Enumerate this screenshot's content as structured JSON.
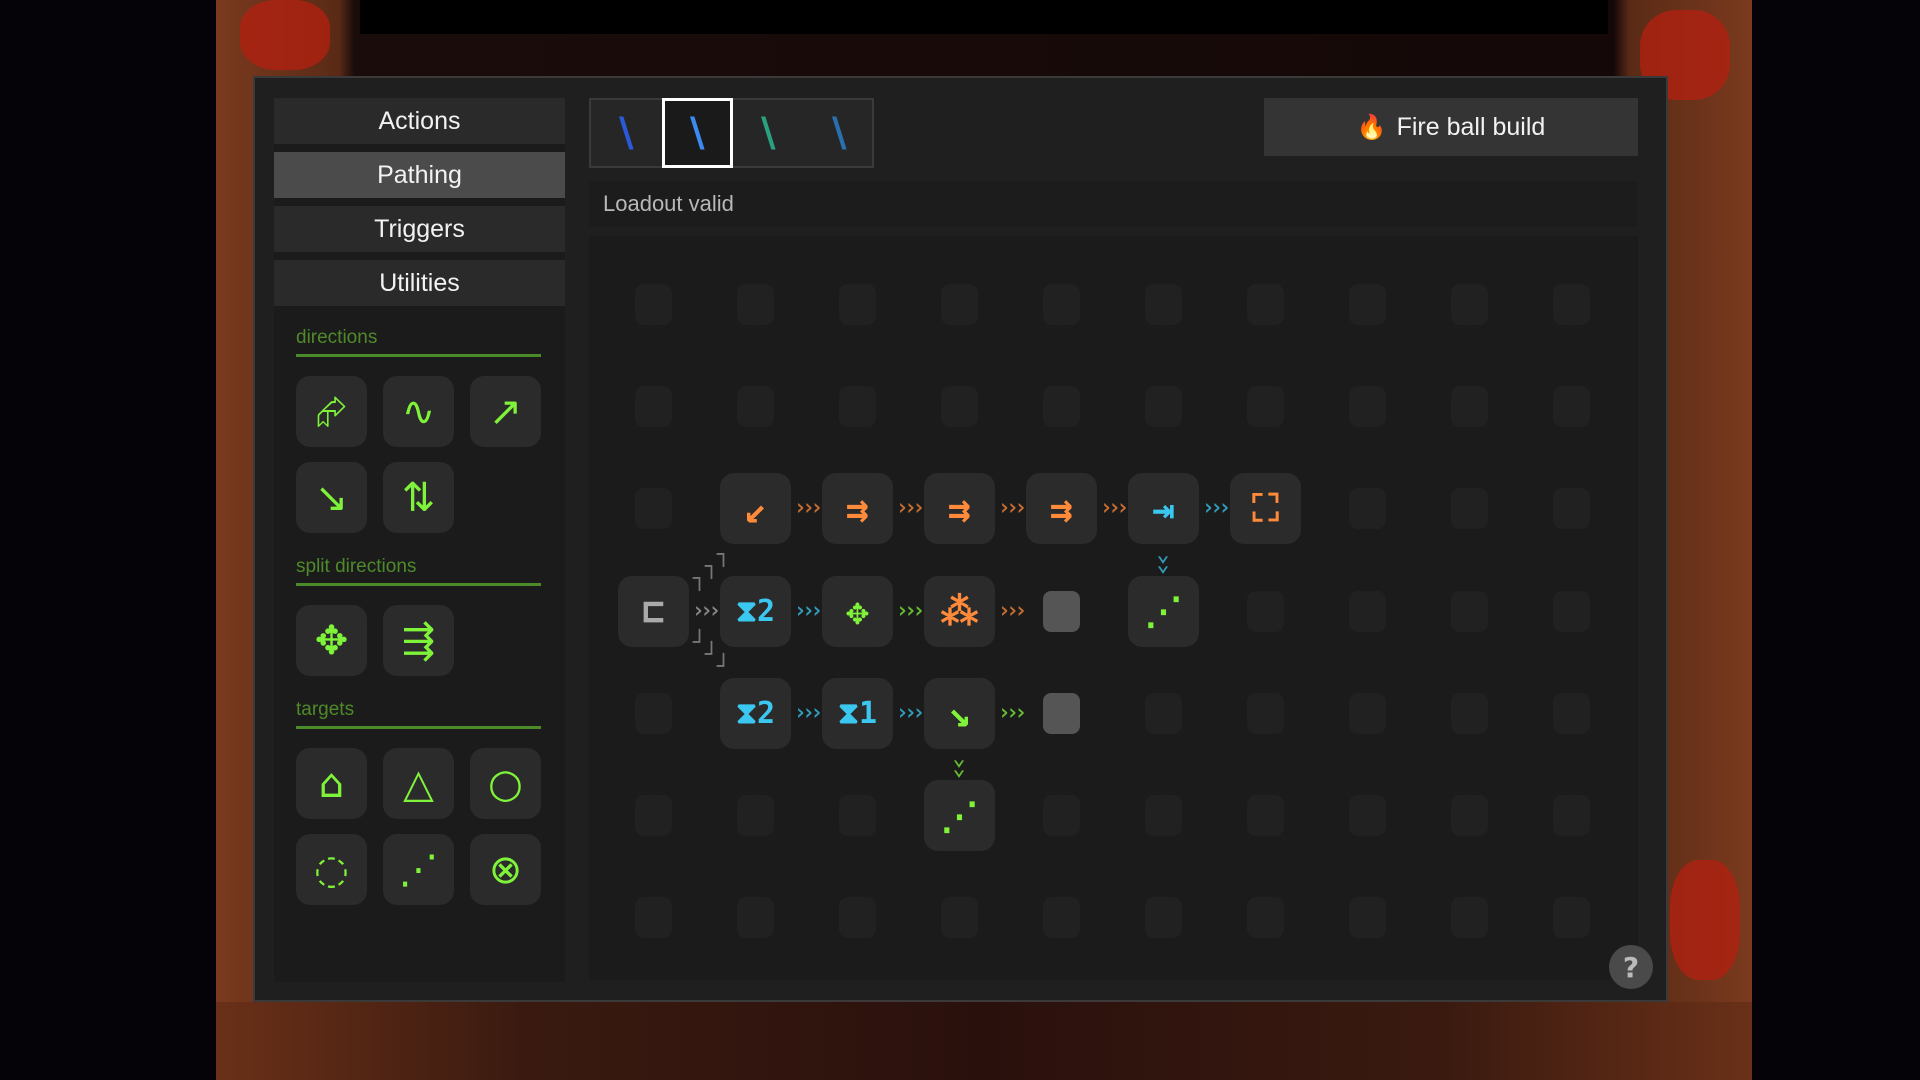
{
  "categories": [
    {
      "label": "Actions",
      "selected": false
    },
    {
      "label": "Pathing",
      "selected": true
    },
    {
      "label": "Triggers",
      "selected": false
    },
    {
      "label": "Utilities",
      "selected": false
    }
  ],
  "palette": [
    {
      "label": "directions",
      "items": [
        {
          "icon": "redirect-box-arrow-icon",
          "glyph": "⮳"
        },
        {
          "icon": "wave-arrow-icon",
          "glyph": "∿"
        },
        {
          "icon": "arrow-up-right-zero-icon",
          "glyph": "↗"
        },
        {
          "icon": "zigzag-arrow-icon",
          "glyph": "↘"
        },
        {
          "icon": "bounce-arrow-icon",
          "glyph": "⇅"
        }
      ]
    },
    {
      "label": "split directions",
      "items": [
        {
          "icon": "eight-way-split-icon",
          "glyph": "✥"
        },
        {
          "icon": "fork-split-icon",
          "glyph": "⇶"
        }
      ]
    },
    {
      "label": "targets",
      "items": [
        {
          "icon": "lock-target-icon",
          "glyph": "⌂"
        },
        {
          "icon": "triangle-target-icon",
          "glyph": "△"
        },
        {
          "icon": "ring-target-icon",
          "glyph": "○"
        },
        {
          "icon": "dotted-ring-target-icon",
          "glyph": "◌"
        },
        {
          "icon": "dotted-triangle-target-icon",
          "glyph": "⋰"
        },
        {
          "icon": "orbit-target-icon",
          "glyph": "⊗"
        }
      ]
    }
  ],
  "wands": [
    {
      "icon": "wand-blue-pink-icon",
      "color": "#2a5ad8",
      "selected": false
    },
    {
      "icon": "wand-light-blue-pink-icon",
      "color": "#3a8af0",
      "selected": true
    },
    {
      "icon": "wand-teal-icon",
      "color": "#2aa080",
      "selected": false
    },
    {
      "icon": "wand-hook-blue-icon",
      "color": "#2a70b0",
      "selected": false
    }
  ],
  "build": {
    "label": "Fire ball build",
    "icon": "fire-icon"
  },
  "status": "Loadout valid",
  "colors": {
    "orange": "#ff8a3a",
    "cyan": "#3ac8f0",
    "green": "#7ff23a",
    "gray": "#aaaaaa"
  },
  "graph": {
    "columns": 10,
    "rows": 7,
    "nodes": [
      {
        "row": 2,
        "col": 1,
        "icon": "target-incoming-icon",
        "glyph": "↙",
        "color": "orange"
      },
      {
        "row": 2,
        "col": 2,
        "icon": "double-arrow-icon",
        "glyph": "⇉",
        "color": "orange"
      },
      {
        "row": 2,
        "col": 3,
        "icon": "double-arrow-icon",
        "glyph": "⇉",
        "color": "orange"
      },
      {
        "row": 2,
        "col": 4,
        "icon": "double-arrow-icon",
        "glyph": "⇉",
        "color": "orange"
      },
      {
        "row": 2,
        "col": 5,
        "icon": "arrow-to-wall-icon",
        "glyph": "⇥",
        "color": "cyan"
      },
      {
        "row": 2,
        "col": 6,
        "icon": "expand-corners-icon",
        "glyph": "⛶",
        "color": "orange"
      },
      {
        "row": 3,
        "col": 0,
        "icon": "splitter-icon",
        "glyph": "⊏",
        "color": "gray"
      },
      {
        "row": 3,
        "col": 1,
        "icon": "timer-2-icon",
        "glyph": "⧗2",
        "color": "cyan"
      },
      {
        "row": 3,
        "col": 2,
        "icon": "eight-way-split-icon",
        "glyph": "✥",
        "color": "green"
      },
      {
        "row": 3,
        "col": 3,
        "icon": "circles-cluster-icon",
        "glyph": "⁂",
        "color": "orange"
      },
      {
        "row": 3,
        "col": 5,
        "icon": "dotted-triangle-target-icon",
        "glyph": "⋰",
        "color": "green"
      },
      {
        "row": 4,
        "col": 1,
        "icon": "timer-2-icon",
        "glyph": "⧗2",
        "color": "cyan"
      },
      {
        "row": 4,
        "col": 2,
        "icon": "timer-1-icon",
        "glyph": "⧗1",
        "color": "cyan"
      },
      {
        "row": 4,
        "col": 3,
        "icon": "zigzag-arrow-icon",
        "glyph": "↘",
        "color": "green"
      },
      {
        "row": 5,
        "col": 3,
        "icon": "dotted-triangle-target-icon",
        "glyph": "⋰",
        "color": "green"
      }
    ],
    "end_slots": [
      {
        "row": 3,
        "col": 4
      },
      {
        "row": 4,
        "col": 4
      }
    ],
    "links": [
      {
        "from": [
          2,
          1
        ],
        "to": [
          2,
          2
        ],
        "color": "orange"
      },
      {
        "from": [
          2,
          2
        ],
        "to": [
          2,
          3
        ],
        "color": "orange"
      },
      {
        "from": [
          2,
          3
        ],
        "to": [
          2,
          4
        ],
        "color": "orange"
      },
      {
        "from": [
          2,
          4
        ],
        "to": [
          2,
          5
        ],
        "color": "orange"
      },
      {
        "from": [
          2,
          5
        ],
        "to": [
          2,
          6
        ],
        "color": "cyan"
      },
      {
        "from": [
          2,
          5
        ],
        "to": [
          3,
          5
        ],
        "color": "cyan"
      },
      {
        "from": [
          3,
          0
        ],
        "to": [
          3,
          1
        ],
        "color": "gray"
      },
      {
        "from": [
          3,
          1
        ],
        "to": [
          3,
          2
        ],
        "color": "cyan"
      },
      {
        "from": [
          3,
          2
        ],
        "to": [
          3,
          3
        ],
        "color": "green"
      },
      {
        "from": [
          3,
          3
        ],
        "to": [
          3,
          4
        ],
        "color": "orange"
      },
      {
        "from": [
          4,
          1
        ],
        "to": [
          4,
          2
        ],
        "color": "cyan"
      },
      {
        "from": [
          4,
          2
        ],
        "to": [
          4,
          3
        ],
        "color": "cyan"
      },
      {
        "from": [
          4,
          3
        ],
        "to": [
          4,
          4
        ],
        "color": "green"
      },
      {
        "from": [
          4,
          3
        ],
        "to": [
          5,
          3
        ],
        "color": "green"
      }
    ]
  },
  "help": "?"
}
